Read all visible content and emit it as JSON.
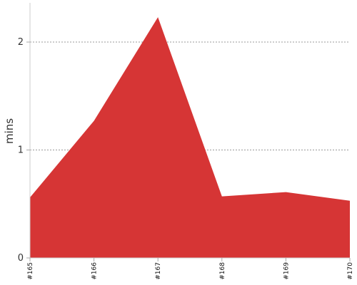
{
  "chart_data": {
    "type": "area",
    "categories": [
      "#165",
      "#166",
      "#167",
      "#168",
      "#169",
      "#170"
    ],
    "series": [
      {
        "values": [
          0.56,
          1.27,
          2.23,
          0.57,
          0.61,
          0.53
        ],
        "color": "#d63535"
      }
    ],
    "ylabel": "mins",
    "xlabel": "",
    "title": "",
    "ylim": [
      0,
      2.35
    ],
    "yticks": [
      0,
      1,
      2
    ],
    "grid": "horizontal-dashed",
    "legend": "none"
  }
}
